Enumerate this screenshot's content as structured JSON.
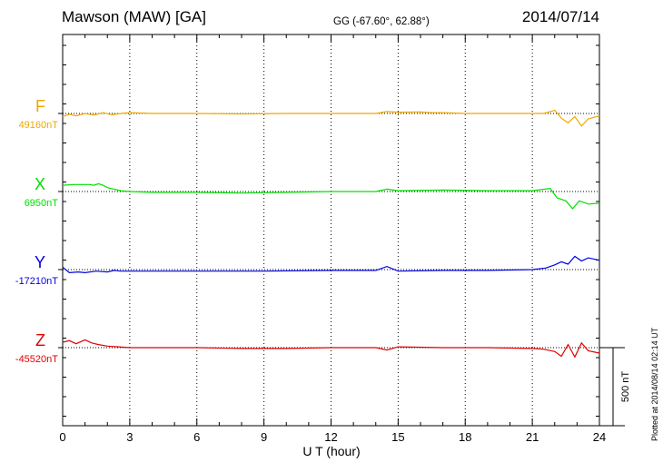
{
  "header": {
    "station": "Mawson (MAW)  [GA]",
    "coords": "GG (-67.60°,  62.88°)",
    "date": "2014/07/14"
  },
  "footer_note": "Plotted at 2014/08/14 02:14 UT",
  "chart_data": {
    "type": "line",
    "xlabel": "U T (hour)",
    "xlim": [
      0,
      24
    ],
    "xticks": [
      "0",
      "3",
      "6",
      "9",
      "12",
      "15",
      "18",
      "21",
      "24"
    ],
    "scale_bar_label": "500 nT",
    "scale_bar_nT": 500,
    "grid": "vertical dotted lines every 3 hours",
    "series": [
      {
        "name": "F",
        "baseline_label": "49160nT",
        "color": "#f0a800",
        "points": [
          [
            0,
            -20
          ],
          [
            0.3,
            -5
          ],
          [
            0.6,
            -15
          ],
          [
            1,
            0
          ],
          [
            1.4,
            -10
          ],
          [
            1.8,
            5
          ],
          [
            2.2,
            -8
          ],
          [
            2.6,
            0
          ],
          [
            3,
            5
          ],
          [
            4,
            0
          ],
          [
            6,
            0
          ],
          [
            8,
            -3
          ],
          [
            10,
            0
          ],
          [
            12,
            0
          ],
          [
            14,
            0
          ],
          [
            14.5,
            12
          ],
          [
            15,
            8
          ],
          [
            16,
            10
          ],
          [
            16.5,
            5
          ],
          [
            17,
            5
          ],
          [
            18,
            0
          ],
          [
            20,
            0
          ],
          [
            21.5,
            0
          ],
          [
            22,
            20
          ],
          [
            22.3,
            -30
          ],
          [
            22.6,
            -60
          ],
          [
            22.9,
            -20
          ],
          [
            23.2,
            -80
          ],
          [
            23.5,
            -35
          ],
          [
            24,
            -15
          ]
        ]
      },
      {
        "name": "X",
        "baseline_label": "6950nT",
        "color": "#00e000",
        "points": [
          [
            0,
            40
          ],
          [
            0.5,
            45
          ],
          [
            1.2,
            45
          ],
          [
            1.4,
            40
          ],
          [
            1.6,
            50
          ],
          [
            1.8,
            40
          ],
          [
            2,
            25
          ],
          [
            2.3,
            15
          ],
          [
            2.6,
            5
          ],
          [
            3,
            0
          ],
          [
            4,
            -5
          ],
          [
            6,
            -5
          ],
          [
            8,
            -10
          ],
          [
            10,
            -5
          ],
          [
            12,
            0
          ],
          [
            14,
            0
          ],
          [
            14.5,
            15
          ],
          [
            15,
            5
          ],
          [
            17,
            10
          ],
          [
            19,
            5
          ],
          [
            21,
            5
          ],
          [
            21.8,
            20
          ],
          [
            22.1,
            -40
          ],
          [
            22.5,
            -60
          ],
          [
            22.8,
            -110
          ],
          [
            23.1,
            -60
          ],
          [
            23.5,
            -80
          ],
          [
            24,
            -75
          ]
        ]
      },
      {
        "name": "Y",
        "baseline_label": "-17210nT",
        "color": "#0000e0",
        "points": [
          [
            0,
            15
          ],
          [
            0.3,
            -20
          ],
          [
            0.7,
            -15
          ],
          [
            1,
            -20
          ],
          [
            1.5,
            -10
          ],
          [
            2,
            -15
          ],
          [
            2.3,
            -5
          ],
          [
            2.6,
            -10
          ],
          [
            3,
            -10
          ],
          [
            6,
            -10
          ],
          [
            9,
            -10
          ],
          [
            12,
            -5
          ],
          [
            14,
            -5
          ],
          [
            14.5,
            20
          ],
          [
            15,
            -10
          ],
          [
            17,
            -5
          ],
          [
            19,
            -5
          ],
          [
            21,
            0
          ],
          [
            21.6,
            10
          ],
          [
            22,
            30
          ],
          [
            22.3,
            50
          ],
          [
            22.6,
            35
          ],
          [
            22.9,
            85
          ],
          [
            23.2,
            55
          ],
          [
            23.5,
            75
          ],
          [
            24,
            60
          ]
        ]
      },
      {
        "name": "Z",
        "baseline_label": "-45520nT",
        "color": "#e00000",
        "points": [
          [
            0,
            35
          ],
          [
            0.3,
            45
          ],
          [
            0.6,
            25
          ],
          [
            1,
            50
          ],
          [
            1.3,
            30
          ],
          [
            1.6,
            20
          ],
          [
            2,
            10
          ],
          [
            2.5,
            5
          ],
          [
            3,
            0
          ],
          [
            6,
            0
          ],
          [
            8,
            -5
          ],
          [
            10,
            -5
          ],
          [
            12,
            0
          ],
          [
            14,
            0
          ],
          [
            14.5,
            -15
          ],
          [
            15,
            5
          ],
          [
            17,
            0
          ],
          [
            19,
            0
          ],
          [
            21,
            -5
          ],
          [
            21.5,
            -10
          ],
          [
            22,
            -25
          ],
          [
            22.3,
            -55
          ],
          [
            22.6,
            20
          ],
          [
            22.9,
            -60
          ],
          [
            23.2,
            30
          ],
          [
            23.5,
            -20
          ],
          [
            24,
            -35
          ]
        ]
      }
    ]
  }
}
